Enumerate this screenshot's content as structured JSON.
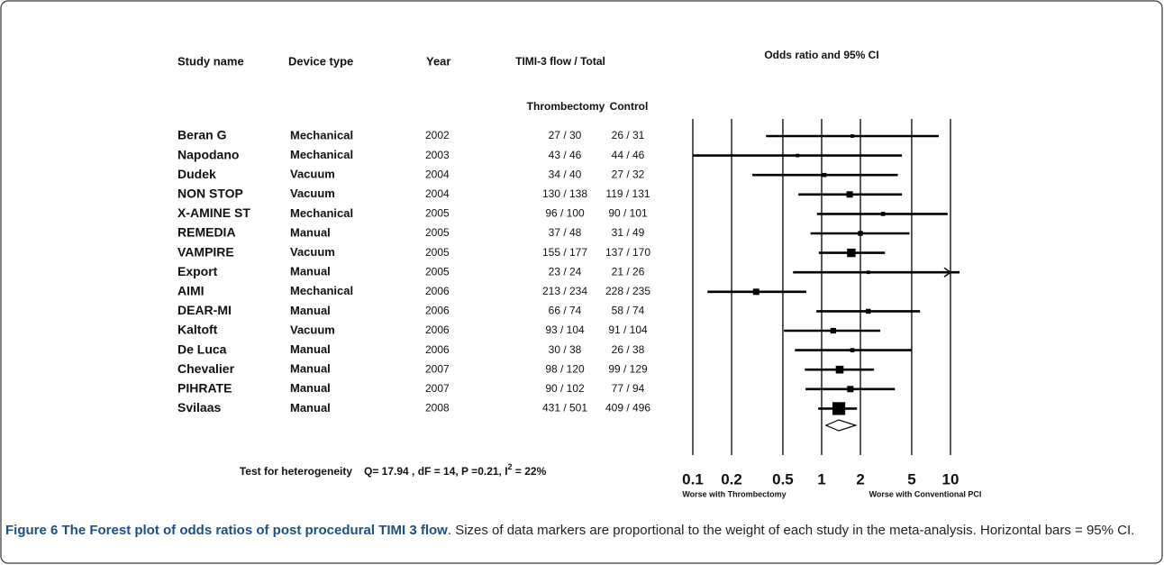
{
  "chart_data": {
    "type": "forest",
    "headers": {
      "study": "Study name",
      "device": "Device type",
      "year": "Year",
      "flow": "TIMI-3 flow / Total",
      "plot": "Odds ratio and 95% CI",
      "thrombectomy": "Thrombectomy",
      "control": "Control"
    },
    "studies": [
      "Beran G",
      "Napodano",
      "Dudek",
      "NON STOP",
      "X-AMINE ST",
      "REMEDIA",
      "VAMPIRE",
      "Export",
      "AIMI",
      "DEAR-MI",
      "Kaltoft",
      "De Luca",
      "Chevalier",
      "PIHRATE",
      "Svilaas"
    ],
    "device": [
      "Mechanical",
      "Mechanical",
      "Vacuum",
      "Vacuum",
      "Mechanical",
      "Manual",
      "Vacuum",
      "Manual",
      "Mechanical",
      "Manual",
      "Vacuum",
      "Manual",
      "Manual",
      "Manual",
      "Manual"
    ],
    "year": [
      "2002",
      "2003",
      "2004",
      "2004",
      "2005",
      "2005",
      "2005",
      "2005",
      "2006",
      "2006",
      "2006",
      "2006",
      "2007",
      "2007",
      "2008"
    ],
    "thrombectomy": [
      "27 / 30",
      "43 / 46",
      "34 / 40",
      "130 / 138",
      "96 / 100",
      "37 / 48",
      "155 / 177",
      "23 / 24",
      "213 / 234",
      "66 / 74",
      "93 / 104",
      "30 / 38",
      "98 / 120",
      "90 / 102",
      "431 / 501"
    ],
    "control": [
      "26 / 31",
      "44 / 46",
      "27 / 32",
      "119 / 131",
      "90 / 101",
      "31 / 49",
      "137 / 170",
      "21 / 26",
      "228 / 235",
      "58 / 74",
      "91 / 104",
      "26 / 38",
      "99 / 129",
      "77 / 94",
      "409 / 496"
    ],
    "odds_ratio": [
      1.73,
      0.65,
      1.05,
      1.65,
      3.0,
      2.0,
      1.7,
      2.3,
      0.31,
      2.3,
      1.23,
      1.73,
      1.38,
      1.67,
      1.36
    ],
    "ci_low": [
      0.37,
      0.1,
      0.29,
      0.66,
      0.92,
      0.82,
      0.95,
      0.6,
      0.13,
      0.91,
      0.51,
      0.62,
      0.74,
      0.75,
      0.94
    ],
    "ci_high": [
      8.1,
      4.2,
      3.9,
      4.2,
      9.5,
      4.8,
      3.1,
      15,
      0.76,
      5.8,
      2.85,
      5.0,
      2.55,
      3.7,
      1.88
    ],
    "weights": [
      1,
      1,
      2,
      5,
      2,
      3,
      8,
      1,
      5,
      3,
      4,
      2,
      7,
      5,
      14
    ],
    "pooled": {
      "odds_ratio": 1.36,
      "ci_low": 1.08,
      "ci_high": 1.84
    },
    "log_scale": true,
    "xlim": [
      0.1,
      10
    ],
    "xticks": [
      0.1,
      0.2,
      0.5,
      1,
      2,
      5,
      10
    ],
    "x_label_low": "Worse with Thrombectomy",
    "x_label_high": "Worse with Conventional PCI",
    "color": "#000000",
    "heterogeneity": {
      "label": "Test for heterogeneity",
      "stats": "Q= 17.94 , dF = 14, P =0.21, I",
      "sup": "2",
      "stats_end": " = 22%"
    }
  },
  "caption": {
    "title": "Figure 6 The Forest plot of odds ratios of post procedural TIMI 3 flow",
    "text": ". Sizes of data markers are proportional to the weight of each study in the meta-analysis. Horizontal bars = 95% CI."
  }
}
